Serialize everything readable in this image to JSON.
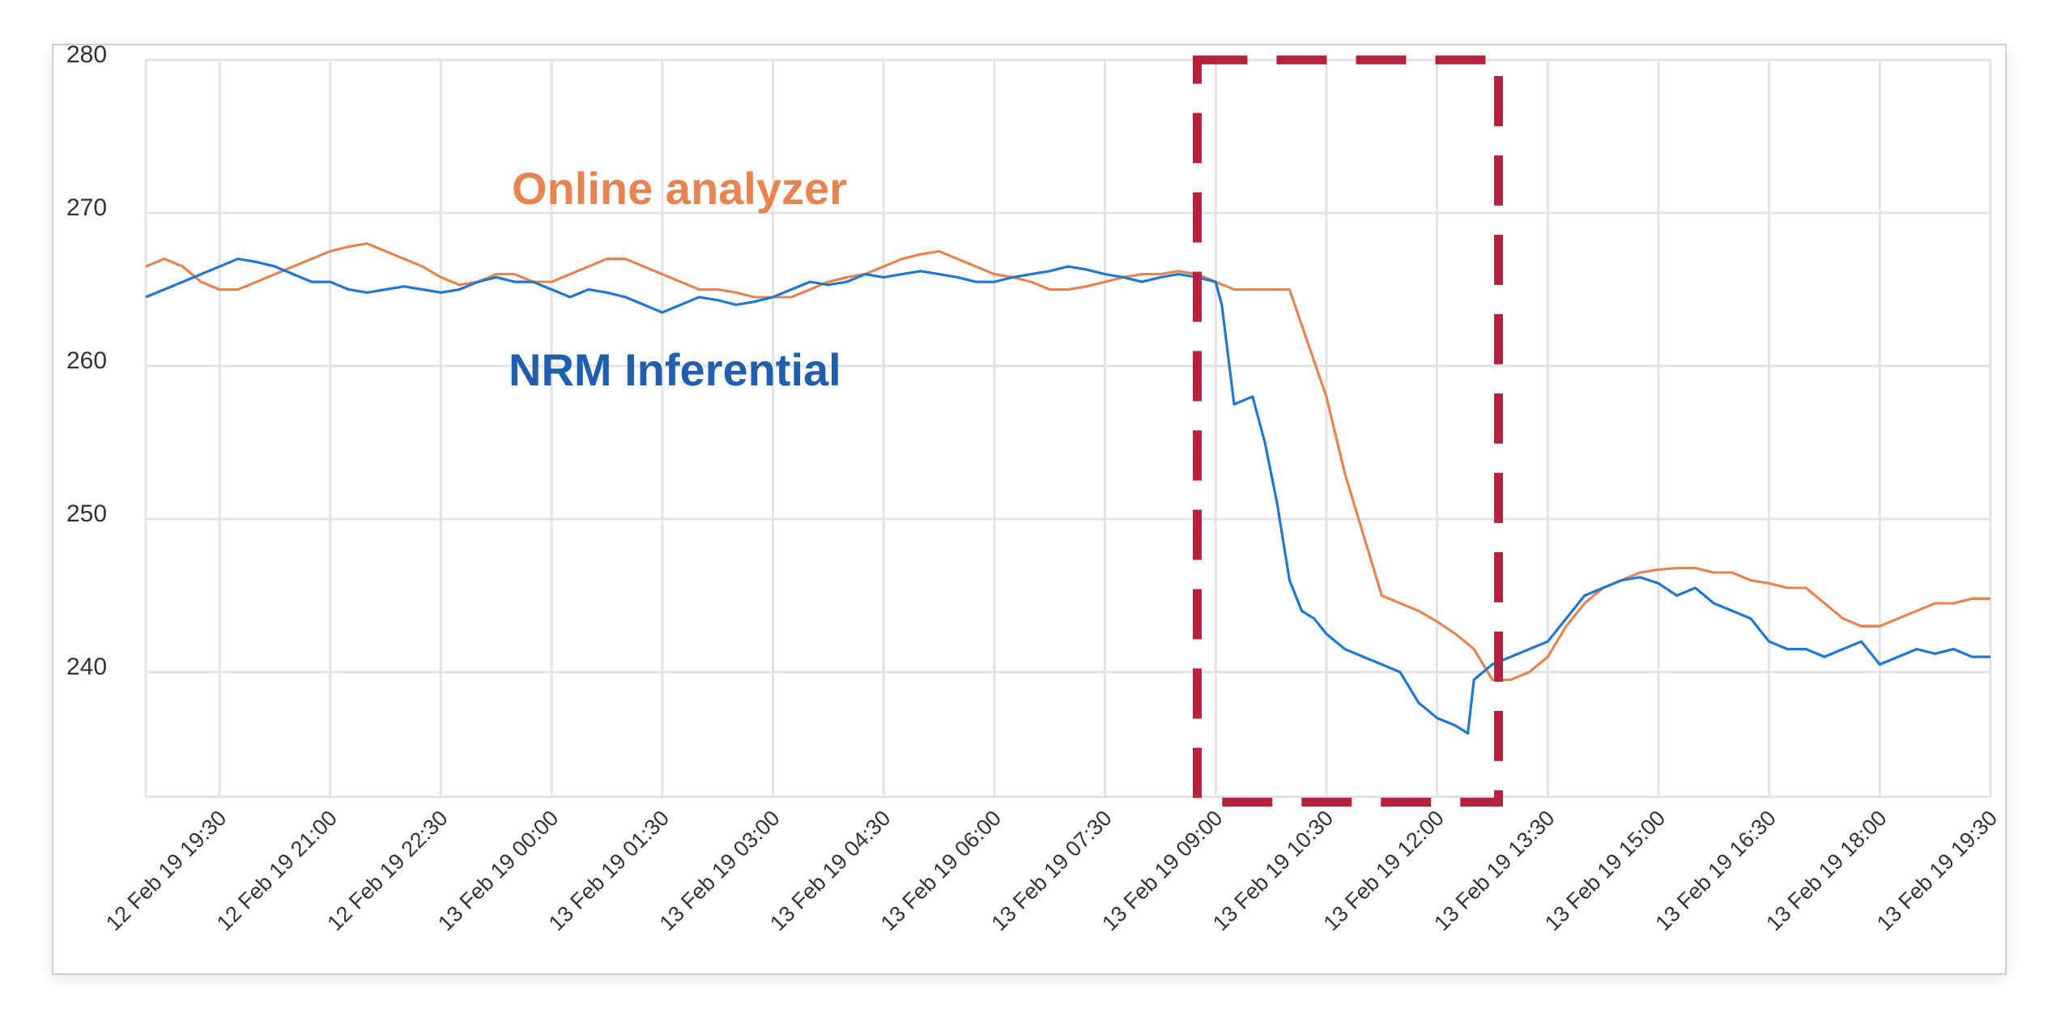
{
  "chart_data": {
    "type": "line",
    "title": "",
    "xlabel": "",
    "ylabel": "",
    "ylim": [
      230,
      280
    ],
    "y_ticks": [
      240,
      250,
      260,
      270,
      280
    ],
    "x_ticks": [
      "12 Feb 19 19:30",
      "12 Feb 19 21:00",
      "12 Feb 19 22:30",
      "13 Feb 19 00:00",
      "13 Feb 19 01:30",
      "13 Feb 19 03:00",
      "13 Feb 19 04:30",
      "13 Feb 19 06:00",
      "13 Feb 19 07:30",
      "13 Feb 19 09:00",
      "13 Feb 19 10:30",
      "13 Feb 19 12:00",
      "13 Feb 19 13:30",
      "13 Feb 19 15:00",
      "13 Feb 19 16:30",
      "13 Feb 19 18:00",
      "13 Feb 19 19:30"
    ],
    "x_range": [
      "12 Feb 19 18:30",
      "13 Feb 19 19:30"
    ],
    "grid": true,
    "annotations": [
      {
        "text": "Online analyzer",
        "color": "#E8844F",
        "series": "Online analyzer"
      },
      {
        "text": "NRM Inferential",
        "color": "#1F5FAE",
        "series": "NRM Inferential"
      }
    ],
    "highlight_region": {
      "x_start": "13 Feb 19 08:45",
      "x_end": "13 Feb 19 12:50",
      "y_start": 231.5,
      "y_end": 280,
      "color": "#B5213F",
      "style": "dashed"
    },
    "series": [
      {
        "name": "Online analyzer",
        "color": "#E8844F",
        "points": [
          [
            "12 Feb 19 18:30",
            266.5
          ],
          [
            "12 Feb 19 18:45",
            267.0
          ],
          [
            "12 Feb 19 19:00",
            266.5
          ],
          [
            "12 Feb 19 19:15",
            265.5
          ],
          [
            "12 Feb 19 19:30",
            265.0
          ],
          [
            "12 Feb 19 19:45",
            265.0
          ],
          [
            "12 Feb 19 20:00",
            265.5
          ],
          [
            "12 Feb 19 20:15",
            266.0
          ],
          [
            "12 Feb 19 20:30",
            266.5
          ],
          [
            "12 Feb 19 20:45",
            267.0
          ],
          [
            "12 Feb 19 21:00",
            267.5
          ],
          [
            "12 Feb 19 21:15",
            267.8
          ],
          [
            "12 Feb 19 21:30",
            268.0
          ],
          [
            "12 Feb 19 21:45",
            267.5
          ],
          [
            "12 Feb 19 22:00",
            267.0
          ],
          [
            "12 Feb 19 22:15",
            266.5
          ],
          [
            "12 Feb 19 22:30",
            265.8
          ],
          [
            "12 Feb 19 22:45",
            265.3
          ],
          [
            "12 Feb 19 23:00",
            265.5
          ],
          [
            "12 Feb 19 23:15",
            266.0
          ],
          [
            "12 Feb 19 23:30",
            266.0
          ],
          [
            "12 Feb 19 23:45",
            265.5
          ],
          [
            "13 Feb 19 00:00",
            265.5
          ],
          [
            "13 Feb 19 00:15",
            266.0
          ],
          [
            "13 Feb 19 00:30",
            266.5
          ],
          [
            "13 Feb 19 00:45",
            267.0
          ],
          [
            "13 Feb 19 01:00",
            267.0
          ],
          [
            "13 Feb 19 01:15",
            266.5
          ],
          [
            "13 Feb 19 01:30",
            266.0
          ],
          [
            "13 Feb 19 01:45",
            265.5
          ],
          [
            "13 Feb 19 02:00",
            265.0
          ],
          [
            "13 Feb 19 02:15",
            265.0
          ],
          [
            "13 Feb 19 02:30",
            264.8
          ],
          [
            "13 Feb 19 02:45",
            264.5
          ],
          [
            "13 Feb 19 03:00",
            264.5
          ],
          [
            "13 Feb 19 03:15",
            264.5
          ],
          [
            "13 Feb 19 03:30",
            265.0
          ],
          [
            "13 Feb 19 03:45",
            265.5
          ],
          [
            "13 Feb 19 04:00",
            265.8
          ],
          [
            "13 Feb 19 04:15",
            266.0
          ],
          [
            "13 Feb 19 04:30",
            266.5
          ],
          [
            "13 Feb 19 04:45",
            267.0
          ],
          [
            "13 Feb 19 05:00",
            267.3
          ],
          [
            "13 Feb 19 05:15",
            267.5
          ],
          [
            "13 Feb 19 05:30",
            267.0
          ],
          [
            "13 Feb 19 05:45",
            266.5
          ],
          [
            "13 Feb 19 06:00",
            266.0
          ],
          [
            "13 Feb 19 06:15",
            265.8
          ],
          [
            "13 Feb 19 06:30",
            265.5
          ],
          [
            "13 Feb 19 06:45",
            265.0
          ],
          [
            "13 Feb 19 07:00",
            265.0
          ],
          [
            "13 Feb 19 07:15",
            265.2
          ],
          [
            "13 Feb 19 07:30",
            265.5
          ],
          [
            "13 Feb 19 07:45",
            265.8
          ],
          [
            "13 Feb 19 08:00",
            266.0
          ],
          [
            "13 Feb 19 08:15",
            266.0
          ],
          [
            "13 Feb 19 08:30",
            266.2
          ],
          [
            "13 Feb 19 08:45",
            266.0
          ],
          [
            "13 Feb 19 09:00",
            265.5
          ],
          [
            "13 Feb 19 09:15",
            265.0
          ],
          [
            "13 Feb 19 09:30",
            265.0
          ],
          [
            "13 Feb 19 09:45",
            265.0
          ],
          [
            "13 Feb 19 10:00",
            265.0
          ],
          [
            "13 Feb 19 10:15",
            261.5
          ],
          [
            "13 Feb 19 10:30",
            258.0
          ],
          [
            "13 Feb 19 10:45",
            253.0
          ],
          [
            "13 Feb 19 11:00",
            249.0
          ],
          [
            "13 Feb 19 11:15",
            245.0
          ],
          [
            "13 Feb 19 11:30",
            244.5
          ],
          [
            "13 Feb 19 11:45",
            244.0
          ],
          [
            "13 Feb 19 12:00",
            243.3
          ],
          [
            "13 Feb 19 12:15",
            242.5
          ],
          [
            "13 Feb 19 12:30",
            241.5
          ],
          [
            "13 Feb 19 12:45",
            239.5
          ],
          [
            "13 Feb 19 13:00",
            239.5
          ],
          [
            "13 Feb 19 13:15",
            240.0
          ],
          [
            "13 Feb 19 13:30",
            241.0
          ],
          [
            "13 Feb 19 13:45",
            243.0
          ],
          [
            "13 Feb 19 14:00",
            244.5
          ],
          [
            "13 Feb 19 14:15",
            245.5
          ],
          [
            "13 Feb 19 14:30",
            246.0
          ],
          [
            "13 Feb 19 14:45",
            246.5
          ],
          [
            "13 Feb 19 15:00",
            246.7
          ],
          [
            "13 Feb 19 15:15",
            246.8
          ],
          [
            "13 Feb 19 15:30",
            246.8
          ],
          [
            "13 Feb 19 15:45",
            246.5
          ],
          [
            "13 Feb 19 16:00",
            246.5
          ],
          [
            "13 Feb 19 16:15",
            246.0
          ],
          [
            "13 Feb 19 16:30",
            245.8
          ],
          [
            "13 Feb 19 16:45",
            245.5
          ],
          [
            "13 Feb 19 17:00",
            245.5
          ],
          [
            "13 Feb 19 17:15",
            244.5
          ],
          [
            "13 Feb 19 17:30",
            243.5
          ],
          [
            "13 Feb 19 17:45",
            243.0
          ],
          [
            "13 Feb 19 18:00",
            243.0
          ],
          [
            "13 Feb 19 18:15",
            243.5
          ],
          [
            "13 Feb 19 18:30",
            244.0
          ],
          [
            "13 Feb 19 18:45",
            244.5
          ],
          [
            "13 Feb 19 19:00",
            244.5
          ],
          [
            "13 Feb 19 19:15",
            244.8
          ],
          [
            "13 Feb 19 19:30",
            244.8
          ]
        ]
      },
      {
        "name": "NRM Inferential",
        "color": "#1F78D1",
        "points": [
          [
            "12 Feb 19 18:30",
            264.5
          ],
          [
            "12 Feb 19 18:45",
            265.0
          ],
          [
            "12 Feb 19 19:00",
            265.5
          ],
          [
            "12 Feb 19 19:15",
            266.0
          ],
          [
            "12 Feb 19 19:30",
            266.5
          ],
          [
            "12 Feb 19 19:45",
            267.0
          ],
          [
            "12 Feb 19 20:00",
            266.8
          ],
          [
            "12 Feb 19 20:15",
            266.5
          ],
          [
            "12 Feb 19 20:30",
            266.0
          ],
          [
            "12 Feb 19 20:45",
            265.5
          ],
          [
            "12 Feb 19 21:00",
            265.5
          ],
          [
            "12 Feb 19 21:15",
            265.0
          ],
          [
            "12 Feb 19 21:30",
            264.8
          ],
          [
            "12 Feb 19 21:45",
            265.0
          ],
          [
            "12 Feb 19 22:00",
            265.2
          ],
          [
            "12 Feb 19 22:15",
            265.0
          ],
          [
            "12 Feb 19 22:30",
            264.8
          ],
          [
            "12 Feb 19 22:45",
            265.0
          ],
          [
            "12 Feb 19 23:00",
            265.5
          ],
          [
            "12 Feb 19 23:15",
            265.8
          ],
          [
            "12 Feb 19 23:30",
            265.5
          ],
          [
            "12 Feb 19 23:45",
            265.5
          ],
          [
            "13 Feb 19 00:00",
            265.0
          ],
          [
            "13 Feb 19 00:15",
            264.5
          ],
          [
            "13 Feb 19 00:30",
            265.0
          ],
          [
            "13 Feb 19 00:45",
            264.8
          ],
          [
            "13 Feb 19 01:00",
            264.5
          ],
          [
            "13 Feb 19 01:15",
            264.0
          ],
          [
            "13 Feb 19 01:30",
            263.5
          ],
          [
            "13 Feb 19 01:45",
            264.0
          ],
          [
            "13 Feb 19 02:00",
            264.5
          ],
          [
            "13 Feb 19 02:15",
            264.3
          ],
          [
            "13 Feb 19 02:30",
            264.0
          ],
          [
            "13 Feb 19 02:45",
            264.2
          ],
          [
            "13 Feb 19 03:00",
            264.5
          ],
          [
            "13 Feb 19 03:15",
            265.0
          ],
          [
            "13 Feb 19 03:30",
            265.5
          ],
          [
            "13 Feb 19 03:45",
            265.3
          ],
          [
            "13 Feb 19 04:00",
            265.5
          ],
          [
            "13 Feb 19 04:15",
            266.0
          ],
          [
            "13 Feb 19 04:30",
            265.8
          ],
          [
            "13 Feb 19 04:45",
            266.0
          ],
          [
            "13 Feb 19 05:00",
            266.2
          ],
          [
            "13 Feb 19 05:15",
            266.0
          ],
          [
            "13 Feb 19 05:30",
            265.8
          ],
          [
            "13 Feb 19 05:45",
            265.5
          ],
          [
            "13 Feb 19 06:00",
            265.5
          ],
          [
            "13 Feb 19 06:15",
            265.8
          ],
          [
            "13 Feb 19 06:30",
            266.0
          ],
          [
            "13 Feb 19 06:45",
            266.2
          ],
          [
            "13 Feb 19 07:00",
            266.5
          ],
          [
            "13 Feb 19 07:15",
            266.3
          ],
          [
            "13 Feb 19 07:30",
            266.0
          ],
          [
            "13 Feb 19 07:45",
            265.8
          ],
          [
            "13 Feb 19 08:00",
            265.5
          ],
          [
            "13 Feb 19 08:15",
            265.8
          ],
          [
            "13 Feb 19 08:30",
            266.0
          ],
          [
            "13 Feb 19 08:45",
            265.8
          ],
          [
            "13 Feb 19 09:00",
            265.5
          ],
          [
            "13 Feb 19 09:05",
            264.0
          ],
          [
            "13 Feb 19 09:15",
            257.5
          ],
          [
            "13 Feb 19 09:30",
            258.0
          ],
          [
            "13 Feb 19 09:40",
            255.0
          ],
          [
            "13 Feb 19 09:50",
            251.0
          ],
          [
            "13 Feb 19 10:00",
            246.0
          ],
          [
            "13 Feb 19 10:10",
            244.0
          ],
          [
            "13 Feb 19 10:20",
            243.5
          ],
          [
            "13 Feb 19 10:30",
            242.5
          ],
          [
            "13 Feb 19 10:45",
            241.5
          ],
          [
            "13 Feb 19 11:00",
            241.0
          ],
          [
            "13 Feb 19 11:15",
            240.5
          ],
          [
            "13 Feb 19 11:30",
            240.0
          ],
          [
            "13 Feb 19 11:45",
            238.0
          ],
          [
            "13 Feb 19 12:00",
            237.0
          ],
          [
            "13 Feb 19 12:15",
            236.5
          ],
          [
            "13 Feb 19 12:25",
            236.0
          ],
          [
            "13 Feb 19 12:30",
            239.5
          ],
          [
            "13 Feb 19 12:45",
            240.5
          ],
          [
            "13 Feb 19 13:00",
            241.0
          ],
          [
            "13 Feb 19 13:15",
            241.5
          ],
          [
            "13 Feb 19 13:30",
            242.0
          ],
          [
            "13 Feb 19 13:45",
            243.5
          ],
          [
            "13 Feb 19 14:00",
            245.0
          ],
          [
            "13 Feb 19 14:15",
            245.5
          ],
          [
            "13 Feb 19 14:30",
            246.0
          ],
          [
            "13 Feb 19 14:45",
            246.2
          ],
          [
            "13 Feb 19 15:00",
            245.8
          ],
          [
            "13 Feb 19 15:15",
            245.0
          ],
          [
            "13 Feb 19 15:30",
            245.5
          ],
          [
            "13 Feb 19 15:45",
            244.5
          ],
          [
            "13 Feb 19 16:00",
            244.0
          ],
          [
            "13 Feb 19 16:15",
            243.5
          ],
          [
            "13 Feb 19 16:30",
            242.0
          ],
          [
            "13 Feb 19 16:45",
            241.5
          ],
          [
            "13 Feb 19 17:00",
            241.5
          ],
          [
            "13 Feb 19 17:15",
            241.0
          ],
          [
            "13 Feb 19 17:30",
            241.5
          ],
          [
            "13 Feb 19 17:45",
            242.0
          ],
          [
            "13 Feb 19 18:00",
            240.5
          ],
          [
            "13 Feb 19 18:15",
            241.0
          ],
          [
            "13 Feb 19 18:30",
            241.5
          ],
          [
            "13 Feb 19 18:45",
            241.2
          ],
          [
            "13 Feb 19 19:00",
            241.5
          ],
          [
            "13 Feb 19 19:15",
            241.0
          ],
          [
            "13 Feb 19 19:30",
            241.0
          ]
        ]
      }
    ]
  }
}
